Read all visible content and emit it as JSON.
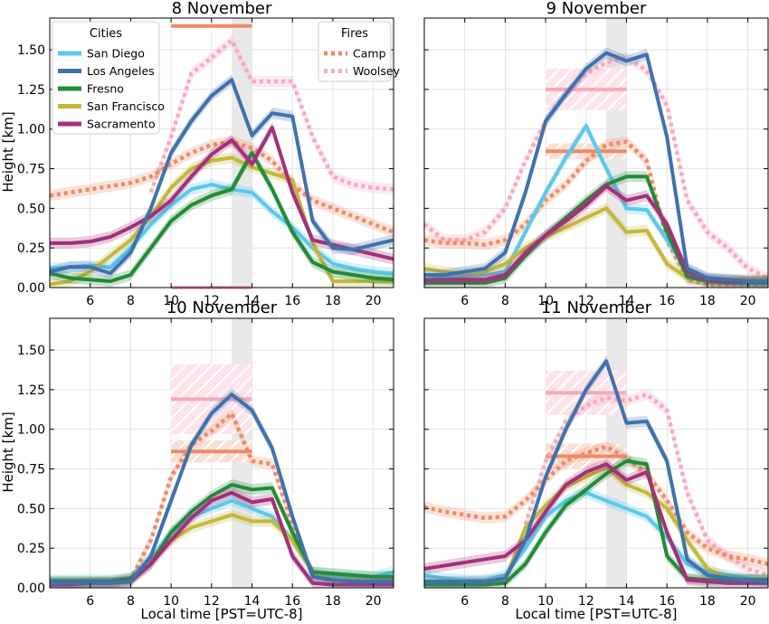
{
  "figure": {
    "xlabel": "Local time [PST=UTC-8]",
    "ylabel": "Height [km]",
    "legend_cities_title": "Cities",
    "legend_fires_title": "Fires"
  },
  "colors": {
    "San Diego": "#5bc8ec",
    "Los Angeles": "#3f72ad",
    "Fresno": "#238b37",
    "San Francisco": "#c3b83c",
    "Sacramento": "#a3307a",
    "Camp": "#ee8a66",
    "Woolsey": "#f7a9bb",
    "shade": "#e9e9e9",
    "grid": "#dddddd"
  },
  "chart_data": [
    {
      "type": "line",
      "title": "8 November",
      "x": [
        4,
        5,
        6,
        7,
        8,
        9,
        10,
        11,
        12,
        13,
        14,
        15,
        16,
        17,
        18,
        19,
        20,
        21
      ],
      "xlim": [
        4,
        21
      ],
      "ylim": [
        0,
        1.7
      ],
      "xticks": [
        6,
        8,
        10,
        12,
        14,
        16,
        18,
        20
      ],
      "yticks": [
        0.0,
        0.25,
        0.5,
        0.75,
        1.0,
        1.25,
        1.5
      ],
      "shaded_x": [
        13,
        14
      ],
      "series": [
        {
          "name": "San Diego",
          "style": "solid",
          "values": [
            0.12,
            0.13,
            0.14,
            0.13,
            0.25,
            0.4,
            0.52,
            0.62,
            0.65,
            0.62,
            0.6,
            0.48,
            0.38,
            0.25,
            0.15,
            0.12,
            0.1,
            0.09
          ]
        },
        {
          "name": "Los Angeles",
          "style": "solid",
          "values": [
            0.1,
            0.13,
            0.13,
            0.09,
            0.22,
            0.5,
            0.85,
            1.05,
            1.21,
            1.31,
            0.96,
            1.1,
            1.08,
            0.42,
            0.25,
            0.24,
            0.27,
            0.3
          ]
        },
        {
          "name": "Fresno",
          "style": "solid",
          "values": [
            0.09,
            0.06,
            0.05,
            0.04,
            0.08,
            0.25,
            0.42,
            0.52,
            0.58,
            0.62,
            0.85,
            0.62,
            0.35,
            0.16,
            0.1,
            0.08,
            0.06,
            0.05
          ]
        },
        {
          "name": "San Francisco",
          "style": "solid",
          "values": [
            0.02,
            0.04,
            0.1,
            0.2,
            0.3,
            0.45,
            0.63,
            0.75,
            0.8,
            0.82,
            0.76,
            0.72,
            0.68,
            0.28,
            0.04,
            0.04,
            0.04,
            0.04
          ]
        },
        {
          "name": "Sacramento",
          "style": "solid",
          "values": [
            0.28,
            0.28,
            0.29,
            0.32,
            0.38,
            0.45,
            0.55,
            0.7,
            0.84,
            0.93,
            0.78,
            1.01,
            0.6,
            0.3,
            0.27,
            0.24,
            0.21,
            0.18
          ]
        },
        {
          "name": "Camp",
          "style": "dotted",
          "values": [
            0.58,
            0.6,
            0.62,
            0.64,
            0.66,
            0.7,
            0.78,
            0.85,
            0.9,
            0.92,
            0.88,
            0.8,
            0.65,
            0.55,
            0.5,
            0.45,
            0.4,
            0.35
          ]
        },
        {
          "name": "Woolsey",
          "style": "dotted",
          "values": [
            null,
            null,
            null,
            null,
            null,
            0.6,
            0.95,
            1.35,
            1.45,
            1.56,
            1.3,
            1.3,
            1.3,
            0.95,
            0.7,
            0.65,
            0.63,
            0.62
          ]
        }
      ],
      "fire_ranges": [
        {
          "name": "Camp",
          "value": 1.65,
          "x": [
            10,
            14
          ],
          "spread": 0.0
        },
        {
          "name": "Woolsey",
          "value": 0.0,
          "x": [
            10,
            14
          ],
          "spread": 0.0
        }
      ]
    },
    {
      "type": "line",
      "title": "9 November",
      "x": [
        4,
        5,
        6,
        7,
        8,
        9,
        10,
        11,
        12,
        13,
        14,
        15,
        16,
        17,
        18,
        19,
        20,
        21
      ],
      "xlim": [
        4,
        21
      ],
      "ylim": [
        0,
        1.7
      ],
      "xticks": [
        6,
        8,
        10,
        12,
        14,
        16,
        18,
        20
      ],
      "yticks": [
        0.0,
        0.25,
        0.5,
        0.75,
        1.0,
        1.25,
        1.5
      ],
      "shaded_x": [
        13,
        14
      ],
      "series": [
        {
          "name": "San Diego",
          "style": "solid",
          "values": [
            0.05,
            0.06,
            0.07,
            0.08,
            0.1,
            0.35,
            0.6,
            0.82,
            1.02,
            0.75,
            0.5,
            0.49,
            0.3,
            0.12,
            0.06,
            0.05,
            0.04,
            0.04
          ]
        },
        {
          "name": "Los Angeles",
          "style": "solid",
          "values": [
            0.08,
            0.08,
            0.1,
            0.12,
            0.22,
            0.6,
            1.05,
            1.22,
            1.38,
            1.48,
            1.43,
            1.47,
            0.95,
            0.12,
            0.06,
            0.05,
            0.04,
            0.04
          ]
        },
        {
          "name": "Fresno",
          "style": "solid",
          "values": [
            0.03,
            0.03,
            0.03,
            0.03,
            0.06,
            0.2,
            0.33,
            0.44,
            0.55,
            0.65,
            0.7,
            0.7,
            0.35,
            0.07,
            0.04,
            0.03,
            0.03,
            0.03
          ]
        },
        {
          "name": "San Francisco",
          "style": "solid",
          "values": [
            0.12,
            0.1,
            0.09,
            0.1,
            0.15,
            0.25,
            0.32,
            0.38,
            0.44,
            0.5,
            0.35,
            0.36,
            0.15,
            0.06,
            0.05,
            0.05,
            0.05,
            0.05
          ]
        },
        {
          "name": "Sacramento",
          "style": "solid",
          "values": [
            0.05,
            0.05,
            0.05,
            0.05,
            0.08,
            0.22,
            0.33,
            0.42,
            0.52,
            0.64,
            0.55,
            0.58,
            0.4,
            0.1,
            0.05,
            0.04,
            0.04,
            0.04
          ]
        },
        {
          "name": "Camp",
          "style": "dotted",
          "values": [
            0.3,
            0.28,
            0.28,
            0.27,
            0.3,
            0.4,
            0.55,
            0.65,
            0.8,
            0.9,
            0.92,
            0.8,
            0.3,
            0.05,
            0.02,
            0.02,
            0.02,
            0.02
          ]
        },
        {
          "name": "Woolsey",
          "style": "dotted",
          "values": [
            0.4,
            0.3,
            0.3,
            0.35,
            0.5,
            0.8,
            1.05,
            1.22,
            1.35,
            1.42,
            1.45,
            1.37,
            1.15,
            0.55,
            0.35,
            0.25,
            0.12,
            0.06
          ]
        }
      ],
      "fire_ranges": [
        {
          "name": "Camp",
          "value": 0.86,
          "x": [
            10,
            14
          ],
          "spread": 0.05
        },
        {
          "name": "Woolsey",
          "value": 1.25,
          "x": [
            10,
            14
          ],
          "spread": 0.13
        }
      ]
    },
    {
      "type": "line",
      "title": "10 November",
      "x": [
        4,
        5,
        6,
        7,
        8,
        9,
        10,
        11,
        12,
        13,
        14,
        15,
        16,
        17,
        18,
        19,
        20,
        21
      ],
      "xlim": [
        4,
        21
      ],
      "ylim": [
        0,
        1.7
      ],
      "xticks": [
        6,
        8,
        10,
        12,
        14,
        16,
        18,
        20
      ],
      "yticks": [
        0.0,
        0.25,
        0.5,
        0.75,
        1.0,
        1.25,
        1.5
      ],
      "shaded_x": [
        13,
        14
      ],
      "series": [
        {
          "name": "San Diego",
          "style": "solid",
          "values": [
            0.05,
            0.05,
            0.05,
            0.05,
            0.06,
            0.18,
            0.35,
            0.45,
            0.5,
            0.55,
            0.5,
            0.45,
            0.3,
            0.1,
            0.08,
            0.07,
            0.07,
            0.1
          ]
        },
        {
          "name": "Los Angeles",
          "style": "solid",
          "values": [
            0.03,
            0.03,
            0.03,
            0.03,
            0.04,
            0.2,
            0.55,
            0.9,
            1.1,
            1.22,
            1.12,
            0.88,
            0.45,
            0.07,
            0.05,
            0.04,
            0.04,
            0.04
          ]
        },
        {
          "name": "Fresno",
          "style": "solid",
          "values": [
            0.04,
            0.04,
            0.04,
            0.04,
            0.06,
            0.15,
            0.35,
            0.48,
            0.58,
            0.65,
            0.62,
            0.63,
            0.35,
            0.1,
            0.09,
            0.08,
            0.07,
            0.07
          ]
        },
        {
          "name": "San Francisco",
          "style": "solid",
          "values": [
            0.03,
            0.03,
            0.03,
            0.03,
            0.05,
            0.17,
            0.3,
            0.38,
            0.42,
            0.46,
            0.42,
            0.42,
            0.3,
            0.1,
            0.05,
            0.05,
            0.05,
            0.05
          ]
        },
        {
          "name": "Sacramento",
          "style": "solid",
          "values": [
            0.02,
            0.02,
            0.03,
            0.03,
            0.04,
            0.15,
            0.3,
            0.44,
            0.55,
            0.6,
            0.54,
            0.56,
            0.2,
            0.03,
            0.02,
            0.02,
            0.02,
            0.02
          ]
        },
        {
          "name": "Camp",
          "style": "dotted",
          "values": [
            0.03,
            0.03,
            0.03,
            0.03,
            0.05,
            0.3,
            0.7,
            0.9,
            0.99,
            1.1,
            0.8,
            0.78,
            0.4,
            0.08,
            0.04,
            0.03,
            0.03,
            0.03
          ]
        },
        {
          "name": "Woolsey",
          "style": "dotted",
          "values": [
            null,
            null,
            null,
            null,
            null,
            null,
            null,
            null,
            null,
            null,
            null,
            null,
            null,
            null,
            null,
            null,
            null,
            null
          ]
        }
      ],
      "fire_ranges": [
        {
          "name": "Camp",
          "value": 0.86,
          "x": [
            10,
            14
          ],
          "spread": 0.07
        },
        {
          "name": "Woolsey",
          "value": 1.19,
          "x": [
            10,
            14
          ],
          "spread": 0.22
        }
      ]
    },
    {
      "type": "line",
      "title": "11 November",
      "x": [
        4,
        5,
        6,
        7,
        8,
        9,
        10,
        11,
        12,
        13,
        14,
        15,
        16,
        17,
        18,
        19,
        20,
        21
      ],
      "xlim": [
        4,
        21
      ],
      "ylim": [
        0,
        1.7
      ],
      "xticks": [
        6,
        8,
        10,
        12,
        14,
        16,
        18,
        20
      ],
      "yticks": [
        0.0,
        0.25,
        0.5,
        0.75,
        1.0,
        1.25,
        1.5
      ],
      "shaded_x": [
        13,
        14
      ],
      "series": [
        {
          "name": "San Diego",
          "style": "solid",
          "values": [
            0.08,
            0.06,
            0.05,
            0.05,
            0.08,
            0.25,
            0.45,
            0.55,
            0.6,
            0.55,
            0.5,
            0.45,
            0.32,
            0.15,
            0.1,
            0.08,
            0.06,
            0.05
          ]
        },
        {
          "name": "Los Angeles",
          "style": "solid",
          "values": [
            0.04,
            0.04,
            0.04,
            0.04,
            0.06,
            0.3,
            0.7,
            1.0,
            1.25,
            1.43,
            1.04,
            1.05,
            0.8,
            0.18,
            0.08,
            0.06,
            0.05,
            0.04
          ]
        },
        {
          "name": "Fresno",
          "style": "solid",
          "values": [
            0.02,
            0.02,
            0.02,
            0.02,
            0.03,
            0.15,
            0.35,
            0.52,
            0.62,
            0.72,
            0.8,
            0.78,
            0.2,
            0.06,
            0.05,
            0.05,
            0.05,
            0.05
          ]
        },
        {
          "name": "San Francisco",
          "style": "solid",
          "values": [
            0.03,
            0.03,
            0.03,
            0.03,
            0.05,
            0.38,
            0.52,
            0.64,
            0.7,
            0.76,
            0.65,
            0.6,
            0.5,
            0.3,
            0.12,
            0.06,
            0.05,
            0.05
          ]
        },
        {
          "name": "Sacramento",
          "style": "solid",
          "values": [
            0.12,
            0.14,
            0.16,
            0.18,
            0.2,
            0.3,
            0.48,
            0.65,
            0.73,
            0.78,
            0.68,
            0.73,
            0.35,
            0.05,
            0.04,
            0.03,
            0.03,
            0.03
          ]
        },
        {
          "name": "Camp",
          "style": "dotted",
          "values": [
            0.51,
            0.48,
            0.46,
            0.44,
            0.45,
            0.55,
            0.68,
            0.8,
            0.85,
            0.89,
            0.82,
            0.72,
            0.55,
            0.35,
            0.25,
            0.2,
            0.18,
            0.15
          ]
        },
        {
          "name": "Woolsey",
          "style": "dotted",
          "values": [
            null,
            null,
            null,
            null,
            null,
            0.4,
            0.8,
            1.05,
            1.15,
            1.2,
            1.18,
            1.22,
            1.12,
            0.6,
            0.3,
            0.2,
            0.12,
            0.08
          ]
        }
      ],
      "fire_ranges": [
        {
          "name": "Camp",
          "value": 0.83,
          "x": [
            10,
            14
          ],
          "spread": 0.08
        },
        {
          "name": "Woolsey",
          "value": 1.23,
          "x": [
            10,
            14
          ],
          "spread": 0.14
        }
      ]
    }
  ]
}
